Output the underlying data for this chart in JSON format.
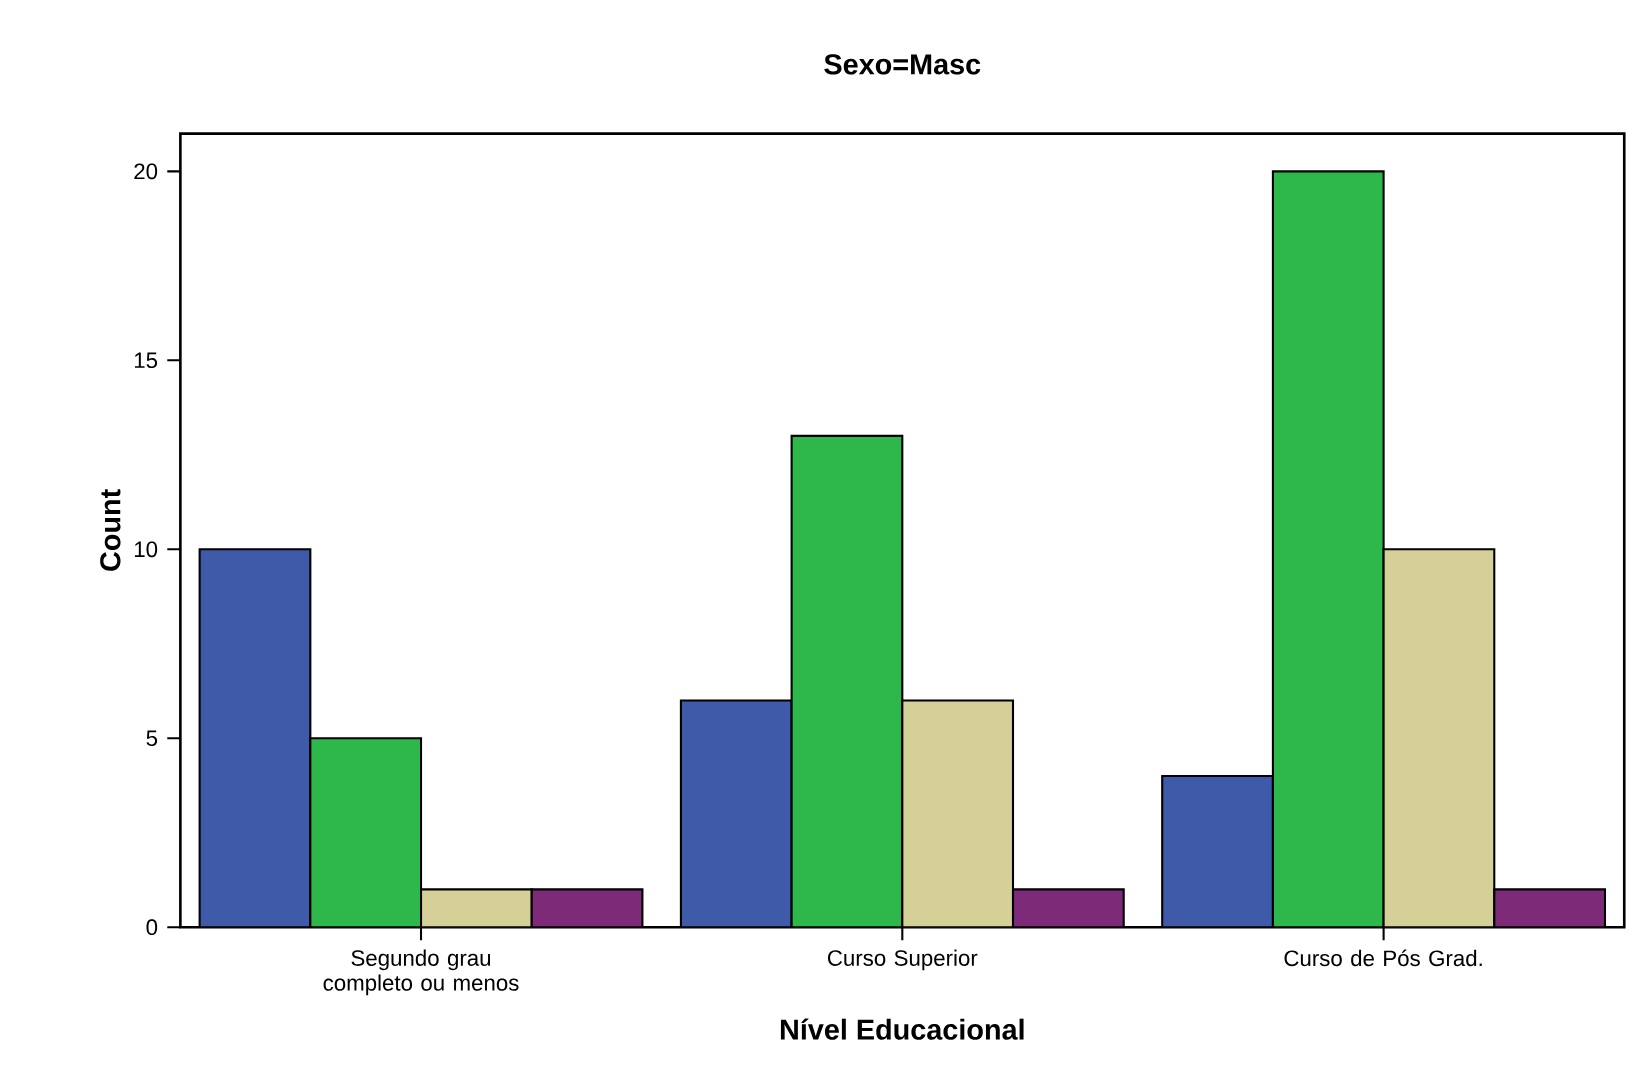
{
  "chart_data": {
    "type": "bar",
    "title": "Sexo=Masc",
    "xlabel": "Nível Educacional",
    "ylabel": "Count",
    "categories": [
      "Segundo grau completo ou menos",
      "Curso Superior",
      "Curso de Pós Grad."
    ],
    "series": [
      {
        "color": "#3f5aa8",
        "values": [
          10,
          6,
          4
        ]
      },
      {
        "color": "#2eb84b",
        "values": [
          5,
          13,
          20
        ]
      },
      {
        "color": "#d5d097",
        "values": [
          1,
          6,
          10
        ]
      },
      {
        "color": "#7d2a78",
        "values": [
          1,
          1,
          1
        ]
      }
    ],
    "ylim": [
      0,
      21
    ],
    "yticks": [
      0,
      5,
      10,
      15,
      20
    ],
    "grid": false
  }
}
